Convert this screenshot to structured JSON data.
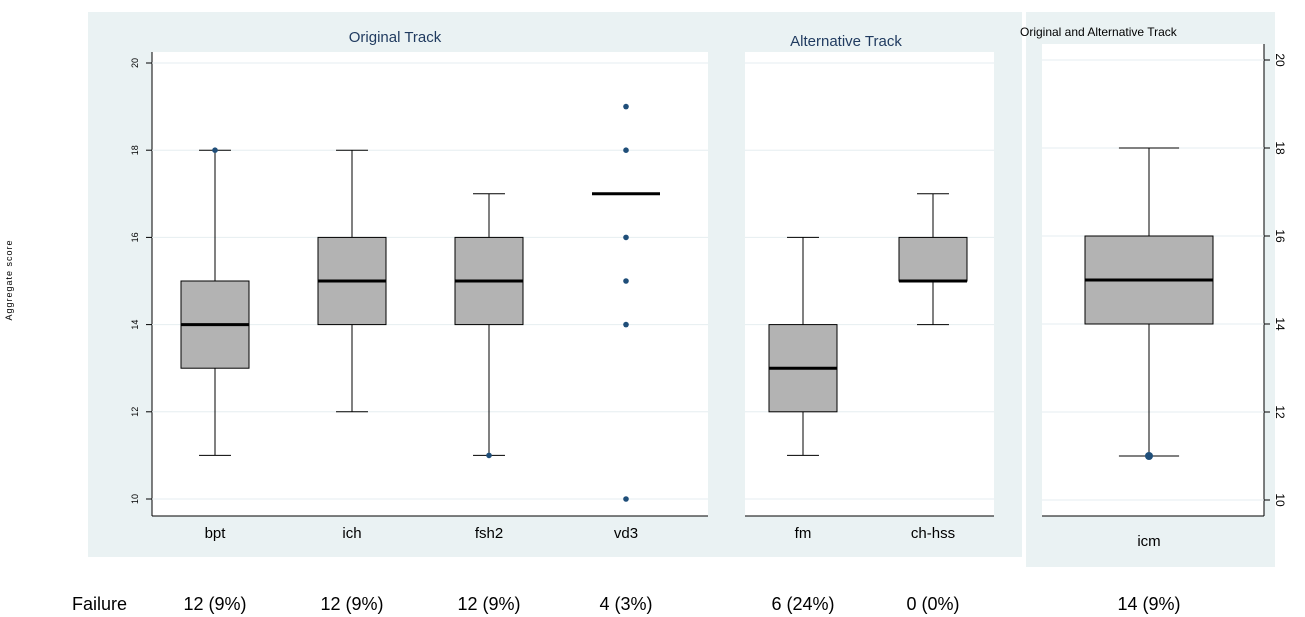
{
  "chart_data": {
    "type": "boxplot",
    "ylabel": "Aggregate score",
    "ylim": [
      10,
      20
    ],
    "yticks": [
      10,
      12,
      14,
      16,
      18,
      20
    ],
    "grid": true,
    "panels": [
      {
        "title": "Original Track",
        "boxes": [
          {
            "category": "bpt",
            "whisker_low": 11,
            "q1": 13,
            "median": 14,
            "q3": 15,
            "whisker_high": 18,
            "outliers": [
              18
            ]
          },
          {
            "category": "ich",
            "whisker_low": 12,
            "q1": 14,
            "median": 15,
            "q3": 16,
            "whisker_high": 18,
            "outliers": []
          },
          {
            "category": "fsh2",
            "whisker_low": 11,
            "q1": 14,
            "median": 15,
            "q3": 16,
            "whisker_high": 17,
            "outliers": [
              11
            ]
          },
          {
            "category": "vd3",
            "whisker_low": 17,
            "q1": 17,
            "median": 17,
            "q3": 17,
            "whisker_high": 17,
            "outliers": [
              10,
              14,
              15,
              16,
              18,
              19
            ]
          }
        ]
      },
      {
        "title": "Alternative Track",
        "boxes": [
          {
            "category": "fm",
            "whisker_low": 11,
            "q1": 12,
            "median": 13,
            "q3": 14,
            "whisker_high": 16,
            "outliers": []
          },
          {
            "category": "ch-hss",
            "whisker_low": 14,
            "q1": 15,
            "median": 15,
            "q3": 16,
            "whisker_high": 17,
            "outliers": []
          }
        ]
      },
      {
        "title": "Original and Alternative Track",
        "boxes": [
          {
            "category": "icm",
            "whisker_low": 11,
            "q1": 14,
            "median": 15,
            "q3": 16,
            "whisker_high": 18,
            "outliers": [
              11
            ]
          }
        ]
      }
    ],
    "failure_row": {
      "label": "Failure",
      "values": [
        "12 (9%)",
        "12 (9%)",
        "12 (9%)",
        "4 (3%)",
        "6 (24%)",
        "0 (0%)",
        "14 (9%)"
      ]
    }
  },
  "colors": {
    "panel_bg": "#eaf2f3",
    "box_fill": "#b3b3b3",
    "outlier": "#1f4e79",
    "title": "#1f3a5f"
  }
}
